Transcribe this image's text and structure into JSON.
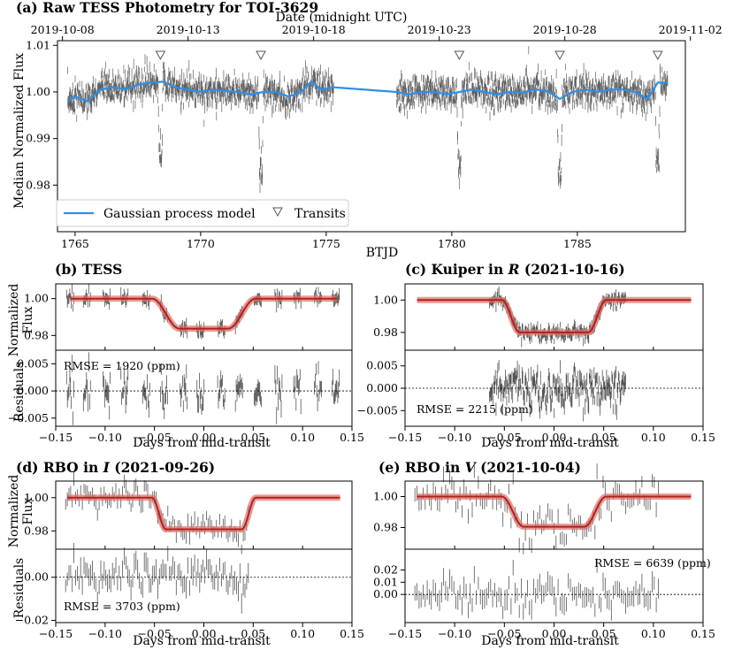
{
  "colors": {
    "gp": "#2e8fe8",
    "model": "#b3201c",
    "model_band": "#d8736c",
    "data": "#2b2b2b",
    "zero": "#000000"
  },
  "panel_a": {
    "title": "(a) Raw TESS Photometry for TOI-3629",
    "top_axis_label": "Date (midnight UTC)",
    "date_ticks": [
      "2019-10-08",
      "2019-10-13",
      "2019-10-18",
      "2019-10-23",
      "2019-10-28",
      "2019-11-02"
    ],
    "xlabel": "BTJD",
    "ylabel": "Median Normalized Flux",
    "legend_gp": "Gaussian process model",
    "legend_transits": "Transits"
  },
  "panel_b": {
    "title": "(b) TESS",
    "rmse": "RMSE = 1920 (ppm)"
  },
  "panel_c": {
    "title": "(c) Kuiper in R (2021-10-16)",
    "title_pre": "(c) Kuiper in ",
    "title_band": "R",
    "title_post": " (2021-10-16)",
    "rmse": "RMSE = 2215 (ppm)"
  },
  "panel_d": {
    "title": "(d) RBO in I (2021-09-26)",
    "title_pre": "(d) RBO in ",
    "title_band": "I",
    "title_post": " (2021-09-26)",
    "rmse": "RMSE = 3703 (ppm)"
  },
  "panel_e": {
    "title": "(e) RBO in V (2021-10-04)",
    "title_pre": "(e) RBO in ",
    "title_band": "V",
    "title_post": " (2021-10-04)",
    "rmse": "RMSE = 6639 (ppm)"
  },
  "labels": {
    "flux_l1": "Normalized",
    "flux_l2": "Flux",
    "residuals": "Residuals",
    "days": "Days from mid-transit"
  },
  "chart_data": [
    {
      "type": "line",
      "panel": "a",
      "title": "(a) Raw TESS Photometry for TOI-3629",
      "xlabel": "BTJD",
      "ylabel": "Median Normalized Flux",
      "xlim": [
        1764.3,
        1789.3
      ],
      "ylim": [
        0.97,
        1.011
      ],
      "x_ticks": [
        1765,
        1770,
        1775,
        1780,
        1785
      ],
      "y_ticks": [
        0.98,
        0.99,
        1.0,
        1.01
      ],
      "top_ticks_btjd": [
        1764.5,
        1769.5,
        1774.5,
        1779.5,
        1784.5,
        1789.5
      ],
      "transits_btjd": [
        1768.4,
        1772.4,
        1780.3,
        1784.3,
        1788.2
      ],
      "data_segments_btjd": [
        [
          1764.7,
          1775.3
        ],
        [
          1777.8,
          1788.6
        ]
      ],
      "gp_model": {
        "x": [
          1764.7,
          1765.0,
          1765.5,
          1766.0,
          1766.5,
          1767.0,
          1767.5,
          1768.0,
          1768.5,
          1769.0,
          1769.5,
          1770.0,
          1770.5,
          1771.0,
          1771.5,
          1772.0,
          1772.5,
          1773.0,
          1773.5,
          1774.0,
          1774.4,
          1774.8,
          1775.3,
          1777.8,
          1778.3,
          1778.8,
          1779.3,
          1779.8,
          1780.3,
          1780.8,
          1781.3,
          1781.8,
          1782.3,
          1782.8,
          1783.3,
          1783.8,
          1784.3,
          1784.8,
          1785.3,
          1785.8,
          1786.3,
          1786.8,
          1787.3,
          1787.8,
          1788.2,
          1788.6
        ],
        "y": [
          0.998,
          0.999,
          0.998,
          1.0005,
          1.001,
          1.0005,
          1.0015,
          1.002,
          1.0022,
          1.001,
          1.0005,
          1.0,
          1.0005,
          1.0002,
          1.0,
          0.9995,
          1.0,
          1.0,
          0.999,
          1.0,
          1.0022,
          1.0005,
          1.001,
          1.0,
          0.9995,
          1.0,
          1.0,
          0.9995,
          1.0,
          1.0005,
          1.0,
          0.9995,
          1.0,
          0.9998,
          1.0005,
          1.0002,
          0.9985,
          1.0,
          1.0005,
          1.0,
          1.0005,
          1.0005,
          1.0,
          0.9985,
          1.002,
          1.002
        ]
      }
    },
    {
      "type": "line",
      "panel": "b",
      "title": "(b) TESS",
      "xlabel": "Days from mid-transit",
      "xlim": [
        -0.15,
        0.15
      ],
      "x_ticks": [
        -0.15,
        -0.1,
        -0.05,
        0.0,
        0.05,
        0.1,
        0.15
      ],
      "flux_ylim": [
        0.972,
        1.008
      ],
      "flux_ticks": [
        0.98,
        1.0
      ],
      "resid_ylim": [
        -0.0065,
        0.0075
      ],
      "resid_ticks": [
        -0.005,
        0.0,
        0.005
      ],
      "model": {
        "depth": 0.0163,
        "t14": 0.105,
        "t12": 0.028,
        "model_span": [
          -0.135,
          0.135
        ]
      },
      "data": {
        "times": [
          -0.135,
          -0.118,
          -0.098,
          -0.08,
          -0.058,
          -0.04,
          -0.02,
          -0.003,
          0.018,
          0.036,
          0.055,
          0.076,
          0.095,
          0.116,
          0.134
        ],
        "scatter": 0.0019,
        "points_per_group": 10
      },
      "rmse_ppm": 1920
    },
    {
      "type": "line",
      "panel": "c",
      "title": "(c) Kuiper in R (2021-10-16)",
      "xlabel": "Days from mid-transit",
      "xlim": [
        -0.15,
        0.15
      ],
      "x_ticks": [
        -0.15,
        -0.1,
        -0.05,
        0.0,
        0.05,
        0.1,
        0.15
      ],
      "flux_ylim": [
        0.969,
        1.01
      ],
      "flux_ticks": [
        0.98,
        1.0
      ],
      "resid_ylim": [
        -0.0085,
        0.0085
      ],
      "resid_ticks": [
        -0.005,
        0.0,
        0.005
      ],
      "model": {
        "depth": 0.02,
        "t14": 0.105,
        "t12": 0.018,
        "model_span": [
          -0.138,
          0.138
        ]
      },
      "data": {
        "span": [
          -0.065,
          0.072
        ],
        "n": 230,
        "scatter": 0.0022
      },
      "rmse_ppm": 2215
    },
    {
      "type": "line",
      "panel": "d",
      "title": "(d) RBO in I (2021-09-26)",
      "xlabel": "Days from mid-transit",
      "xlim": [
        -0.15,
        0.15
      ],
      "x_ticks": [
        -0.15,
        -0.1,
        -0.05,
        0.0,
        0.05,
        0.1,
        0.15
      ],
      "flux_ylim": [
        0.969,
        1.01
      ],
      "flux_ticks": [
        0.98,
        1.0
      ],
      "resid_ylim": [
        -0.021,
        0.013
      ],
      "resid_ticks": [
        -0.02,
        0.0
      ],
      "model": {
        "depth": 0.019,
        "t14": 0.105,
        "t12": 0.014,
        "model_span": [
          -0.138,
          0.138
        ]
      },
      "data": {
        "span": [
          -0.14,
          0.045
        ],
        "n": 110,
        "scatter": 0.0037
      },
      "rmse_ppm": 3703
    },
    {
      "type": "line",
      "panel": "e",
      "title": "(e) RBO in V (2021-10-04)",
      "xlabel": "Days from mid-transit",
      "xlim": [
        -0.15,
        0.15
      ],
      "x_ticks": [
        -0.15,
        -0.1,
        -0.05,
        0.0,
        0.05,
        0.1,
        0.15
      ],
      "flux_ylim": [
        0.966,
        1.01
      ],
      "flux_ticks": [
        0.98,
        1.0
      ],
      "resid_ylim": [
        -0.023,
        0.037
      ],
      "resid_ticks": [
        0.0,
        0.01,
        0.02
      ],
      "model": {
        "depth": 0.0195,
        "t14": 0.105,
        "t12": 0.022,
        "model_span": [
          -0.138,
          0.138
        ]
      },
      "data": {
        "span": [
          -0.14,
          0.105
        ],
        "n": 120,
        "scatter": 0.0066
      },
      "rmse_ppm": 6639
    }
  ]
}
